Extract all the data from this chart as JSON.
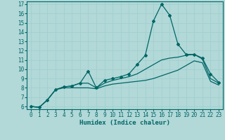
{
  "xlabel": "Humidex (Indice chaleur)",
  "background_color": "#b2d8d8",
  "line_color": "#006666",
  "grid_color": "#9ecece",
  "xlim": [
    -0.5,
    23.5
  ],
  "ylim": [
    5.7,
    17.3
  ],
  "yticks": [
    6,
    7,
    8,
    9,
    10,
    11,
    12,
    13,
    14,
    15,
    16,
    17
  ],
  "xticks": [
    0,
    1,
    2,
    3,
    4,
    5,
    6,
    7,
    8,
    9,
    10,
    11,
    12,
    13,
    14,
    15,
    16,
    17,
    18,
    19,
    20,
    21,
    22,
    23
  ],
  "x": [
    0,
    1,
    2,
    3,
    4,
    5,
    6,
    7,
    8,
    9,
    10,
    11,
    12,
    13,
    14,
    15,
    16,
    17,
    18,
    19,
    20,
    21,
    22,
    23
  ],
  "y_main": [
    6.0,
    5.9,
    6.7,
    7.8,
    8.1,
    8.2,
    8.5,
    9.8,
    8.0,
    8.8,
    9.0,
    9.2,
    9.5,
    10.5,
    11.5,
    15.2,
    17.0,
    15.8,
    12.7,
    11.6,
    11.6,
    11.2,
    9.5,
    8.6
  ],
  "y_line2": [
    6.0,
    5.9,
    6.7,
    7.8,
    8.1,
    8.2,
    8.5,
    8.5,
    8.0,
    8.5,
    8.8,
    9.0,
    9.2,
    9.5,
    10.0,
    10.5,
    11.0,
    11.2,
    11.3,
    11.5,
    11.6,
    11.1,
    9.0,
    8.5
  ],
  "y_line3": [
    6.0,
    5.9,
    6.7,
    7.8,
    8.0,
    8.0,
    8.0,
    8.0,
    7.9,
    8.2,
    8.4,
    8.5,
    8.6,
    8.7,
    8.8,
    9.0,
    9.3,
    9.6,
    9.9,
    10.4,
    10.9,
    10.7,
    8.7,
    8.3
  ],
  "tick_fontsize": 5.5,
  "xlabel_fontsize": 6.5,
  "marker": "D",
  "markersize": 2.0,
  "linewidth": 0.9
}
